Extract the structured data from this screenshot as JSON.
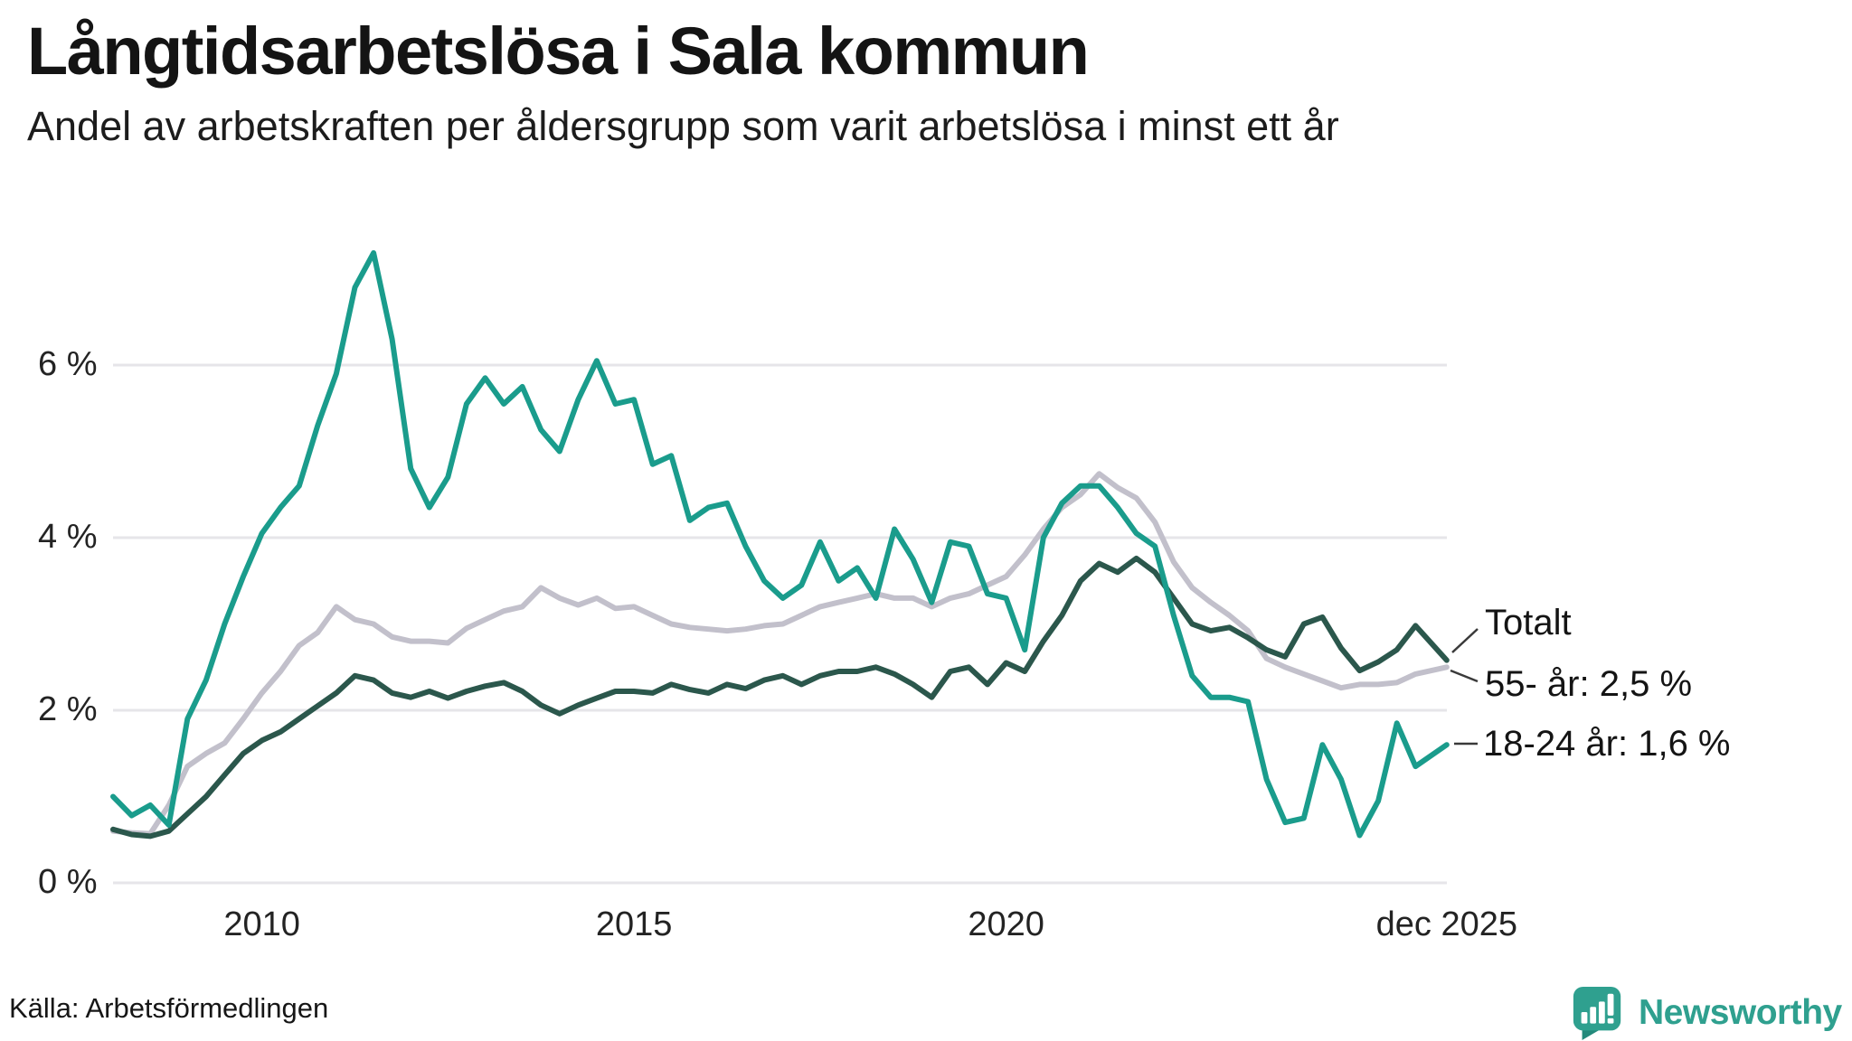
{
  "header": {
    "title": "Långtidsarbetslösa i Sala kommun",
    "subtitle": "Andel av arbetskraften per åldersgrupp som varit arbetslösa i minst ett år"
  },
  "colors": {
    "youth": "#1A9C8C",
    "older": "#C2C0CB",
    "total": "#2B574C",
    "grid": "#E6E5E9",
    "leader": "#3a3a3a",
    "brand": "#2FA08F",
    "brand_dark": "#23897B"
  },
  "callouts": {
    "total": "Totalt",
    "older": "55- år: 2,5 %",
    "youth": "18-24 år: 1,6 %"
  },
  "footer": {
    "source": "Källa: Arbetsförmedlingen",
    "brand": "Newsworthy"
  },
  "chart_data": {
    "type": "line",
    "title": "Långtidsarbetslösa i Sala kommun",
    "subtitle": "Andel av arbetskraften per åldersgrupp som varit arbetslösa i minst ett år",
    "unit": "%",
    "grid": true,
    "legend_position": "right-annotations",
    "x_axis": {
      "range": [
        2008,
        2025.92
      ],
      "ticks": [
        {
          "year": 2010,
          "label": "2010"
        },
        {
          "year": 2015,
          "label": "2015"
        },
        {
          "year": 2020,
          "label": "2020"
        },
        {
          "year": 2025.92,
          "label": "dec 2025"
        }
      ]
    },
    "y_axis": {
      "range": [
        0,
        7.6
      ],
      "ticks": [
        {
          "value": 0,
          "label": "0 %"
        },
        {
          "value": 2,
          "label": "2 %"
        },
        {
          "value": 4,
          "label": "4 %"
        },
        {
          "value": 6,
          "label": "6 %"
        }
      ]
    },
    "x": [
      2008,
      2008.25,
      2008.5,
      2008.75,
      2009,
      2009.25,
      2009.5,
      2009.75,
      2010,
      2010.25,
      2010.5,
      2010.75,
      2011,
      2011.25,
      2011.5,
      2011.75,
      2012,
      2012.25,
      2012.5,
      2012.75,
      2013,
      2013.25,
      2013.5,
      2013.75,
      2014,
      2014.25,
      2014.5,
      2014.75,
      2015,
      2015.25,
      2015.5,
      2015.75,
      2016,
      2016.25,
      2016.5,
      2016.75,
      2017,
      2017.25,
      2017.5,
      2017.75,
      2018,
      2018.25,
      2018.5,
      2018.75,
      2019,
      2019.25,
      2019.5,
      2019.75,
      2020,
      2020.25,
      2020.5,
      2020.75,
      2021,
      2021.25,
      2021.5,
      2021.75,
      2022,
      2022.25,
      2022.5,
      2022.75,
      2023,
      2023.25,
      2023.5,
      2023.75,
      2024,
      2024.25,
      2024.5,
      2024.75,
      2025,
      2025.25,
      2025.5,
      2025.92
    ],
    "series": [
      {
        "name": "55- år",
        "color_key": "older",
        "end_label": "55- år: 2,5 %",
        "values": [
          0.6,
          0.58,
          0.57,
          0.9,
          1.35,
          1.5,
          1.62,
          1.9,
          2.2,
          2.45,
          2.75,
          2.9,
          3.2,
          3.05,
          3.0,
          2.85,
          2.8,
          2.8,
          2.78,
          2.95,
          3.05,
          3.15,
          3.2,
          3.42,
          3.3,
          3.22,
          3.3,
          3.18,
          3.2,
          3.1,
          3.0,
          2.96,
          2.94,
          2.92,
          2.94,
          2.98,
          3.0,
          3.1,
          3.2,
          3.25,
          3.3,
          3.35,
          3.3,
          3.3,
          3.2,
          3.3,
          3.35,
          3.45,
          3.55,
          3.8,
          4.1,
          4.35,
          4.5,
          4.74,
          4.58,
          4.46,
          4.18,
          3.72,
          3.42,
          3.25,
          3.1,
          2.92,
          2.6,
          2.5,
          2.42,
          2.34,
          2.26,
          2.3,
          2.3,
          2.32,
          2.42,
          2.5
        ]
      },
      {
        "name": "Totalt",
        "color_key": "total",
        "end_label": "Totalt",
        "values": [
          0.62,
          0.56,
          0.54,
          0.6,
          0.8,
          1.0,
          1.25,
          1.5,
          1.65,
          1.75,
          1.9,
          2.05,
          2.2,
          2.4,
          2.35,
          2.2,
          2.15,
          2.22,
          2.14,
          2.22,
          2.28,
          2.32,
          2.22,
          2.06,
          1.96,
          2.06,
          2.14,
          2.22,
          2.22,
          2.2,
          2.3,
          2.24,
          2.2,
          2.3,
          2.25,
          2.35,
          2.4,
          2.3,
          2.4,
          2.45,
          2.45,
          2.5,
          2.42,
          2.3,
          2.15,
          2.45,
          2.5,
          2.3,
          2.55,
          2.45,
          2.8,
          3.1,
          3.5,
          3.7,
          3.6,
          3.76,
          3.6,
          3.3,
          3.0,
          2.92,
          2.96,
          2.84,
          2.7,
          2.62,
          3.0,
          3.08,
          2.72,
          2.46,
          2.56,
          2.7,
          2.98,
          2.58
        ]
      },
      {
        "name": "18-24 år",
        "color_key": "youth",
        "end_label": "18-24 år: 1,6 %",
        "values": [
          1.0,
          0.78,
          0.9,
          0.67,
          1.9,
          2.35,
          3.0,
          3.55,
          4.05,
          4.35,
          4.6,
          5.3,
          5.9,
          6.9,
          7.3,
          6.3,
          4.8,
          4.35,
          4.7,
          5.55,
          5.85,
          5.55,
          5.75,
          5.25,
          5.0,
          5.6,
          6.05,
          5.55,
          5.6,
          4.85,
          4.95,
          4.2,
          4.35,
          4.4,
          3.9,
          3.5,
          3.3,
          3.45,
          3.95,
          3.5,
          3.65,
          3.3,
          4.1,
          3.75,
          3.25,
          3.95,
          3.9,
          3.35,
          3.3,
          2.7,
          4.0,
          4.4,
          4.6,
          4.6,
          4.35,
          4.05,
          3.9,
          3.1,
          2.4,
          2.15,
          2.15,
          2.1,
          1.2,
          0.7,
          0.75,
          1.6,
          1.2,
          0.55,
          0.95,
          1.85,
          1.35,
          1.6
        ]
      }
    ]
  }
}
